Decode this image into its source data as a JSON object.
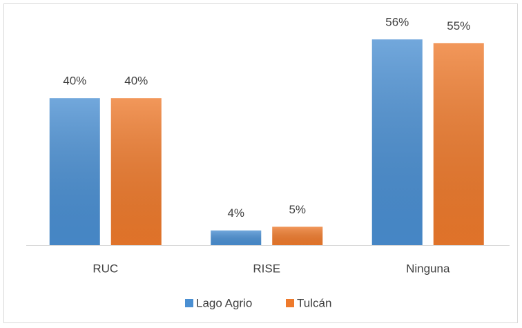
{
  "chart_data": {
    "type": "bar",
    "categories": [
      "RUC",
      "RISE",
      "Ninguna"
    ],
    "series": [
      {
        "name": "Lago Agrio",
        "color": "#4a8fd2",
        "values": [
          40,
          4,
          56
        ],
        "value_labels": [
          "40%",
          "4%",
          "56%"
        ]
      },
      {
        "name": "Tulcán",
        "color": "#ee7a2c",
        "values": [
          40,
          5,
          55
        ],
        "value_labels": [
          "40%",
          "5%",
          "55%"
        ]
      }
    ],
    "legend": "bottom"
  }
}
